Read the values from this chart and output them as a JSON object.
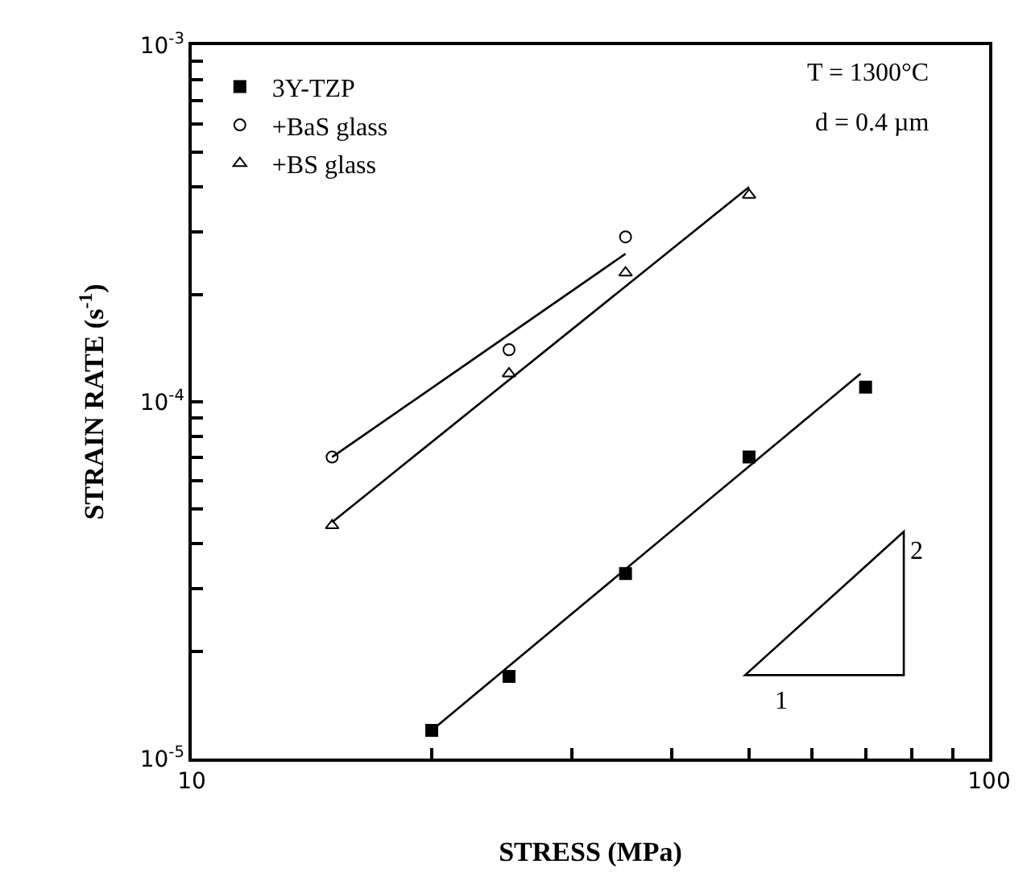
{
  "chart_data": {
    "type": "scatter",
    "xlabel": "STRESS (MPa)",
    "ylabel": "STRAIN RATE (s$^{-1}$)",
    "log": "xy",
    "grid": false,
    "legend": "top left",
    "xlim": [
      10,
      100
    ],
    "ylim": [
      1e-05,
      0.001
    ],
    "xticks": [
      10,
      {
        "value": 20,
        "label": null
      },
      {
        "value": 30,
        "label": null
      },
      {
        "value": 40,
        "label": null
      },
      {
        "value": 50,
        "label": null
      },
      {
        "value": 60,
        "label": null
      },
      {
        "value": 70,
        "label": null
      },
      {
        "value": 80,
        "label": null
      },
      {
        "value": 90,
        "label": null
      },
      100
    ],
    "yticks": [
      {
        "value": 1e-05,
        "label": "10$^{-5}$"
      },
      {
        "value": 2e-05,
        "label": null
      },
      {
        "value": 3e-05,
        "label": null
      },
      {
        "value": 4e-05,
        "label": null
      },
      {
        "value": 5e-05,
        "label": null
      },
      {
        "value": 6e-05,
        "label": null
      },
      {
        "value": 7e-05,
        "label": null
      },
      {
        "value": 8e-05,
        "label": null
      },
      {
        "value": 9e-05,
        "label": null
      },
      {
        "value": 0.0001,
        "label": "10$^{-4}$"
      },
      {
        "value": 0.0002,
        "label": null
      },
      {
        "value": 0.0003,
        "label": null
      },
      {
        "value": 0.0004,
        "label": null
      },
      {
        "value": 0.0005,
        "label": null
      },
      {
        "value": 0.0006,
        "label": null
      },
      {
        "value": 0.0007,
        "label": null
      },
      {
        "value": 0.0008,
        "label": null
      },
      {
        "value": 0.0009,
        "label": null
      },
      {
        "value": 0.001,
        "label": "10$^{-3}$"
      }
    ],
    "series": [
      {
        "name": "3Y-TZP",
        "type": "scatter",
        "marker": "square",
        "color": "#000000",
        "x": [
          20,
          25,
          35,
          50,
          70
        ],
        "values": [
          1.2e-05,
          1.7e-05,
          3.3e-05,
          7e-05,
          0.00011
        ]
      },
      {
        "name": "+BaS glass",
        "type": "scatter",
        "marker": "circle",
        "color": "#000000",
        "x": [
          15,
          25,
          35
        ],
        "values": [
          7e-05,
          0.00014,
          0.00029
        ]
      },
      {
        "name": "+BS glass",
        "type": "scatter",
        "marker": "triangle",
        "color": "#000000",
        "x": [
          15,
          25,
          35,
          50
        ],
        "values": [
          4.5e-05,
          0.00012,
          0.00023,
          0.00038
        ]
      },
      {
        "type": "line",
        "color": "#000000",
        "x": [
          20,
          69
        ],
        "values": [
          1.2e-05,
          0.00012
        ]
      },
      {
        "type": "line",
        "color": "#000000",
        "x": [
          15,
          35
        ],
        "values": [
          7e-05,
          0.00026
        ]
      },
      {
        "type": "line",
        "color": "#000000",
        "x": [
          15,
          50
        ],
        "values": [
          4.6e-05,
          0.0004
        ]
      }
    ],
    "annotations": [
      "T = 1300°C",
      "d = 0.4 µm",
      "2",
      "1"
    ]
  }
}
